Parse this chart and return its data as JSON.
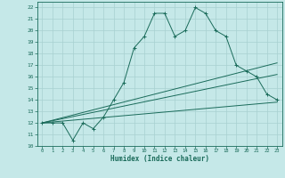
{
  "xlabel": "Humidex (Indice chaleur)",
  "background_color": "#c5e8e8",
  "grid_color": "#a8d0d0",
  "line_color": "#1a6b5a",
  "xlim": [
    -0.5,
    23.5
  ],
  "ylim": [
    10,
    22.5
  ],
  "yticks": [
    10,
    11,
    12,
    13,
    14,
    15,
    16,
    17,
    18,
    19,
    20,
    21,
    22
  ],
  "xticks": [
    0,
    1,
    2,
    3,
    4,
    5,
    6,
    7,
    8,
    9,
    10,
    11,
    12,
    13,
    14,
    15,
    16,
    17,
    18,
    19,
    20,
    21,
    22,
    23
  ],
  "main_series": {
    "x": [
      0,
      1,
      2,
      3,
      4,
      5,
      6,
      7,
      8,
      9,
      10,
      11,
      12,
      13,
      14,
      15,
      16,
      17,
      18,
      19,
      20,
      21,
      22,
      23
    ],
    "y": [
      12,
      12,
      12,
      10.5,
      12,
      11.5,
      12.5,
      14,
      15.5,
      18.5,
      19.5,
      21.5,
      21.5,
      19.5,
      20,
      22,
      21.5,
      20,
      19.5,
      17,
      16.5,
      16,
      14.5,
      14
    ]
  },
  "trend_lines": [
    {
      "x": [
        0,
        23
      ],
      "y": [
        12,
        17.2
      ]
    },
    {
      "x": [
        0,
        23
      ],
      "y": [
        12,
        16.2
      ]
    },
    {
      "x": [
        0,
        23
      ],
      "y": [
        12,
        13.8
      ]
    }
  ]
}
